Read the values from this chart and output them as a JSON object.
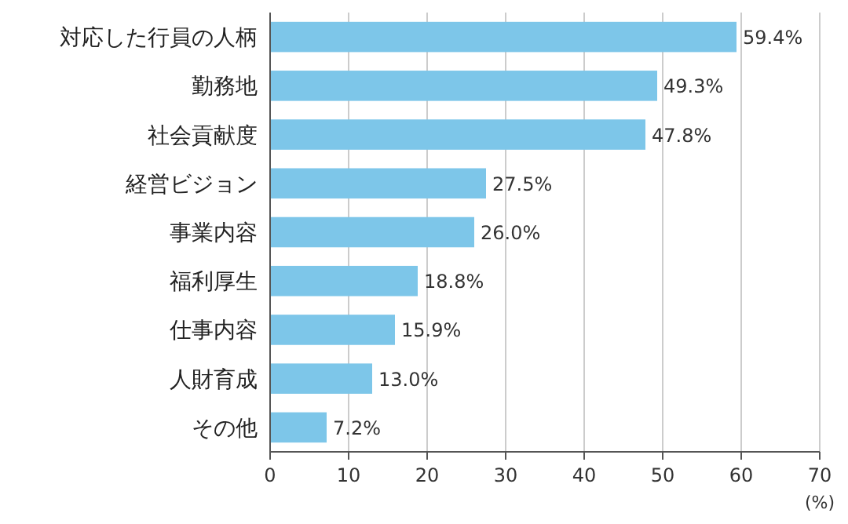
{
  "chart_data": {
    "type": "bar",
    "orientation": "horizontal",
    "categories": [
      "対応した行員の人柄",
      "勤務地",
      "社会貢献度",
      "経営ビジョン",
      "事業内容",
      "福利厚生",
      "仕事内容",
      "人財育成",
      "その他"
    ],
    "values": [
      59.4,
      49.3,
      47.8,
      27.5,
      26.0,
      18.8,
      15.9,
      13.0,
      7.2
    ],
    "value_labels": [
      "59.4%",
      "49.3%",
      "47.8%",
      "27.5%",
      "26.0%",
      "18.8%",
      "15.9%",
      "13.0%",
      "7.2%"
    ],
    "color": "#7dc6e9",
    "xlim": [
      0,
      70
    ],
    "xticks": [
      0,
      10,
      20,
      30,
      40,
      50,
      60,
      70
    ],
    "xlabel": "(%)",
    "grid": "x"
  }
}
